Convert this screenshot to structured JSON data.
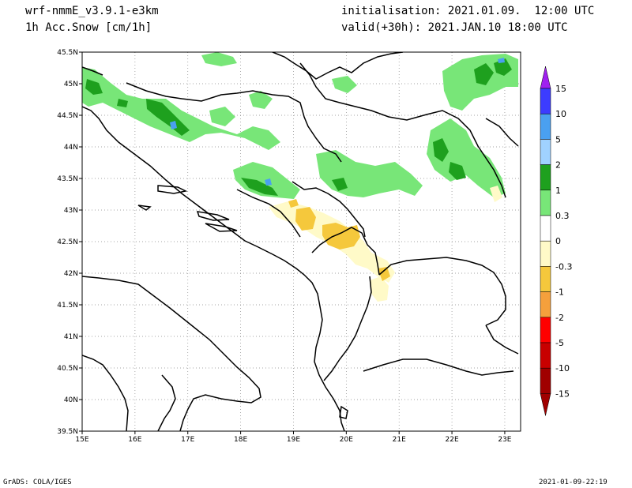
{
  "header": {
    "model": "wrf-nmmE_v3.9.1-e3km",
    "field": "1h Acc.Snow [cm/1h]",
    "init": "initialisation: 2021.01.09.  12:00 UTC",
    "valid": "valid(+30h): 2021.JAN.10 18:00 UTC"
  },
  "footer": {
    "left": "GrADS: COLA/IGES",
    "right": "2021-01-09-22:19"
  },
  "map": {
    "lon_range": [
      15,
      23.3
    ],
    "lat_range": [
      39.5,
      45.5
    ],
    "lon_ticks": [
      "15E",
      "16E",
      "17E",
      "18E",
      "19E",
      "20E",
      "21E",
      "22E",
      "23E"
    ],
    "lat_ticks": [
      "39.5N",
      "40N",
      "40.5N",
      "41N",
      "41.5N",
      "42N",
      "42.5N",
      "43N",
      "43.5N",
      "44N",
      "44.5N",
      "45N",
      "45.5N"
    ]
  },
  "colorbar": {
    "labels": [
      "15",
      "10",
      "5",
      "2",
      "1",
      "0.3",
      "0",
      "-0.3",
      "-1",
      "-2",
      "-5",
      "-10",
      "-15"
    ],
    "colors": [
      "#a020f0",
      "#3c3cff",
      "#4aa0f0",
      "#a0d2ff",
      "#1ea01e",
      "#78e678",
      "#ffffff",
      "#fffac8",
      "#f5c83c",
      "#f5a03c",
      "#ff0000",
      "#c80000",
      "#a00000"
    ]
  }
}
